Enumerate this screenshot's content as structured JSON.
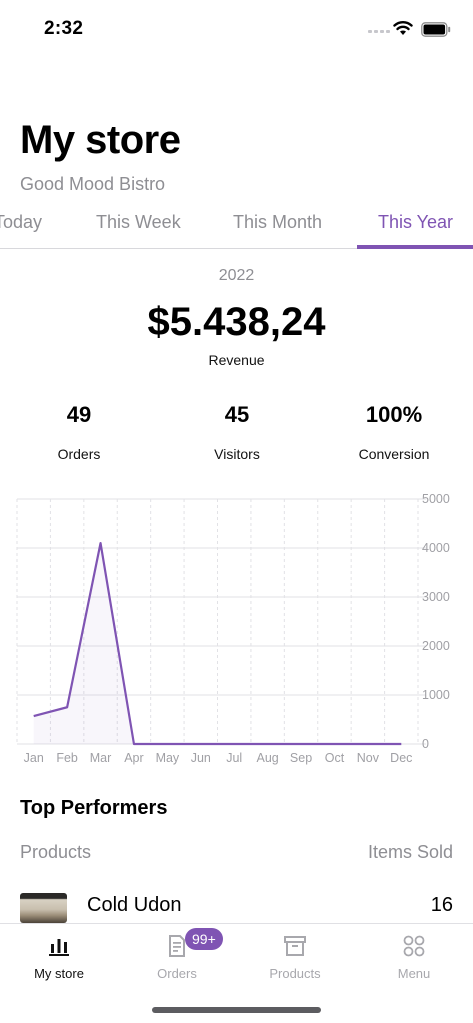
{
  "status_bar": {
    "time": "2:32"
  },
  "header": {
    "title": "My store",
    "store_name": "Good Mood Bistro"
  },
  "tabs": [
    {
      "label": "Today",
      "active": false
    },
    {
      "label": "This Week",
      "active": false
    },
    {
      "label": "This Month",
      "active": false
    },
    {
      "label": "This Year",
      "active": true
    }
  ],
  "summary": {
    "period": "2022",
    "revenue": "$5.438,24",
    "revenue_label": "Revenue",
    "stats": [
      {
        "value": "49",
        "label": "Orders"
      },
      {
        "value": "45",
        "label": "Visitors"
      },
      {
        "value": "100%",
        "label": "Conversion"
      }
    ]
  },
  "chart_data": {
    "type": "line",
    "x": [
      "Jan",
      "Feb",
      "Mar",
      "Apr",
      "May",
      "Jun",
      "Jul",
      "Aug",
      "Sep",
      "Oct",
      "Nov",
      "Dec"
    ],
    "series": [
      {
        "values": [
          570,
          750,
          4100,
          0,
          0,
          0,
          0,
          0,
          0,
          0,
          0,
          0
        ]
      }
    ],
    "yticks": [
      "0",
      "1000",
      "2000",
      "3000",
      "4000",
      "5000"
    ],
    "ylim": [
      0,
      5000
    ],
    "grid": true,
    "color": "#7f54b3"
  },
  "top_performers": {
    "title": "Top Performers",
    "col_products": "Products",
    "col_items_sold": "Items Sold",
    "items": [
      {
        "name": "Cold Udon",
        "count": "16"
      }
    ]
  },
  "bottom_nav": {
    "items": [
      {
        "label": "My store",
        "icon": "bar-chart-icon",
        "active": true
      },
      {
        "label": "Orders",
        "icon": "orders-icon",
        "active": false
      },
      {
        "label": "Products",
        "icon": "archive-box-icon",
        "active": false
      },
      {
        "label": "Menu",
        "icon": "grid-circles-icon",
        "active": false
      }
    ],
    "orders_badge": "99+"
  },
  "colors": {
    "accent": "#7f54b3",
    "muted": "#8e8e93"
  }
}
